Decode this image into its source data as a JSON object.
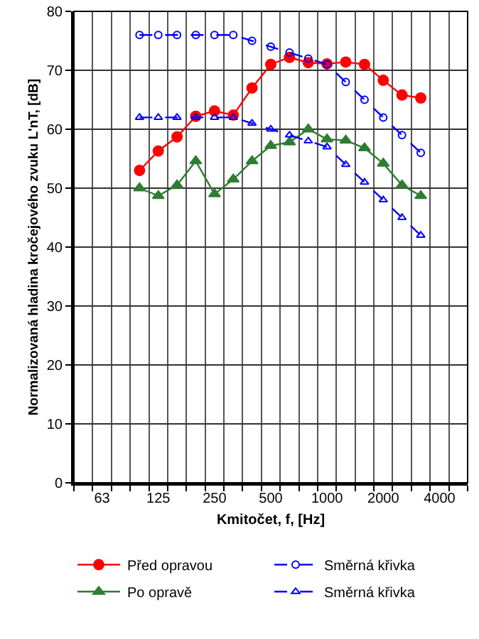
{
  "chart_data": {
    "type": "line",
    "xlabel": "Kmitočet, f, [Hz]",
    "ylabel": "Normalizovaná hladina kročejového zvuku L'nT, [dB]",
    "categories": [
      null,
      "63",
      null,
      null,
      "125",
      null,
      null,
      "250",
      null,
      null,
      "500",
      null,
      null,
      "1000",
      null,
      null,
      "2000",
      null,
      null,
      "4000",
      null
    ],
    "series": [
      {
        "name": "Před opravou",
        "color": "#ff0000",
        "marker": "circle",
        "line_style": "solid",
        "values": [
          null,
          null,
          null,
          53,
          56.3,
          58.7,
          62.2,
          63.1,
          62.4,
          67,
          71,
          72.2,
          71.3,
          71.1,
          71.4,
          71,
          68.3,
          65.8,
          65.3,
          null,
          null
        ]
      },
      {
        "name": "Směrná křivka",
        "color": "#0000ff",
        "marker": "circle",
        "line_style": "dashed",
        "values": [
          null,
          null,
          null,
          76,
          76,
          76,
          76,
          76,
          76,
          75,
          74,
          73,
          72,
          71,
          68,
          65,
          62,
          59,
          56,
          null,
          null
        ]
      },
      {
        "name": "Po opravě",
        "color": "#2e7d32",
        "marker": "triangle",
        "line_style": "solid",
        "values": [
          null,
          null,
          null,
          50,
          48.7,
          50.5,
          54.6,
          49,
          51.5,
          54.6,
          57.2,
          57.8,
          60,
          58.3,
          58.1,
          56.8,
          54.2,
          50.5,
          48.7,
          null,
          null
        ]
      },
      {
        "name": "Směrná křivka",
        "color": "#0000ff",
        "marker": "triangle",
        "line_style": "dashed",
        "values": [
          null,
          null,
          null,
          62,
          62,
          62,
          62,
          62,
          62,
          61,
          60,
          59,
          58,
          57,
          54,
          51,
          48,
          45,
          42,
          null,
          null
        ]
      }
    ],
    "ylim": [
      0,
      80
    ],
    "yticks": [
      0,
      10,
      20,
      30,
      40,
      50,
      60,
      70,
      80
    ],
    "grid": true,
    "legend": "bottom"
  }
}
